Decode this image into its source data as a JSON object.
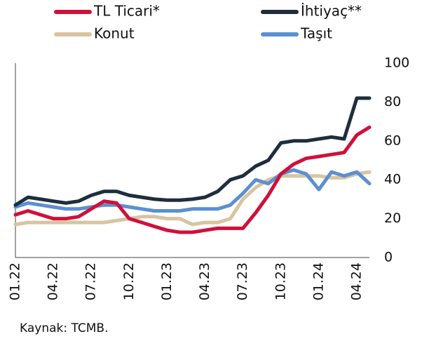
{
  "chart_data": {
    "type": "line",
    "categories": [
      "01.22",
      null,
      null,
      "04.22",
      null,
      null,
      "07.22",
      null,
      null,
      "10.22",
      null,
      null,
      "01.23",
      null,
      null,
      "04.23",
      null,
      null,
      "07.23",
      null,
      null,
      "10.23",
      null,
      null,
      "01.24",
      null,
      null,
      "04.24",
      null
    ],
    "series": [
      {
        "name": "TL Ticari*",
        "color": "#d0103a",
        "values": [
          22,
          24,
          22,
          20,
          20,
          21,
          25,
          29,
          28,
          20,
          18,
          16,
          14,
          13,
          13,
          14,
          15,
          15,
          15,
          23,
          32,
          43,
          48,
          51,
          52,
          53,
          54,
          63,
          67
        ]
      },
      {
        "name": "İhtiyaç**",
        "color": "#1f2d3d",
        "values": [
          27,
          31,
          30,
          29,
          28,
          29,
          32,
          34,
          34,
          32,
          31,
          30,
          29.5,
          29.5,
          30,
          31,
          34,
          40,
          42,
          47,
          50,
          59,
          60,
          60,
          61,
          62,
          61,
          82,
          82
        ]
      },
      {
        "name": "Konut",
        "color": "#d9c4a0",
        "values": [
          17,
          18,
          18,
          18,
          18,
          18,
          18,
          18,
          19,
          20,
          21,
          21,
          20,
          20,
          17,
          18,
          18,
          20,
          30,
          36,
          40,
          42,
          42,
          42,
          42,
          41,
          41,
          43,
          44
        ]
      },
      {
        "name": "Taşıt",
        "color": "#5b8fd1",
        "values": [
          26,
          28,
          27,
          26,
          25,
          25,
          26,
          27,
          27,
          26,
          25,
          24,
          24,
          24,
          25,
          25,
          25,
          27,
          33,
          40,
          38,
          43,
          45,
          43,
          35,
          44,
          42,
          44,
          38
        ]
      }
    ],
    "ylim": [
      0,
      100
    ],
    "yticks": [
      0,
      20,
      40,
      60,
      80,
      100
    ],
    "note": "Kaynak: TCMB."
  }
}
